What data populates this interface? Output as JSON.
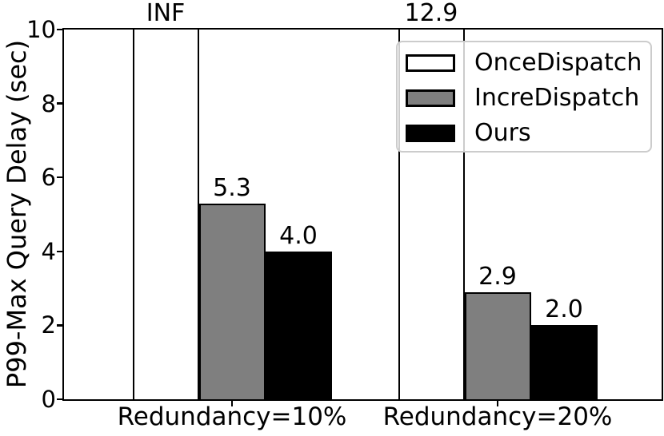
{
  "chart_data": {
    "type": "bar",
    "title": "",
    "xlabel": "",
    "ylabel": "P99-Max Query Delay (sec)",
    "ylim": [
      0,
      10
    ],
    "yticks": [
      "0",
      "2",
      "4",
      "6",
      "8",
      "10"
    ],
    "grid": false,
    "bars_exceeding_ylim_clipped": true,
    "categories": [
      "Redundancy=10%",
      "Redundancy=20%"
    ],
    "series": [
      {
        "name": "OnceDispatch",
        "color": "#ffffff",
        "values": [
          "INF",
          12.9
        ],
        "bar_labels": [
          "INF",
          "12.9"
        ]
      },
      {
        "name": "IncreDispatch",
        "color": "#7f7f7f",
        "values": [
          5.3,
          2.9
        ],
        "bar_labels": [
          "5.3",
          "2.9"
        ]
      },
      {
        "name": "Ours",
        "color": "#000000",
        "values": [
          4.0,
          2.0
        ],
        "bar_labels": [
          "4.0",
          "2.0"
        ]
      }
    ],
    "legend": {
      "position": "upper right",
      "entries": [
        "OnceDispatch",
        "IncreDispatch",
        "Ours"
      ]
    },
    "colors": {
      "bar_edge": "#000000",
      "axis": "#000000",
      "legend_border": "#cccccc",
      "background": "#ffffff"
    }
  }
}
